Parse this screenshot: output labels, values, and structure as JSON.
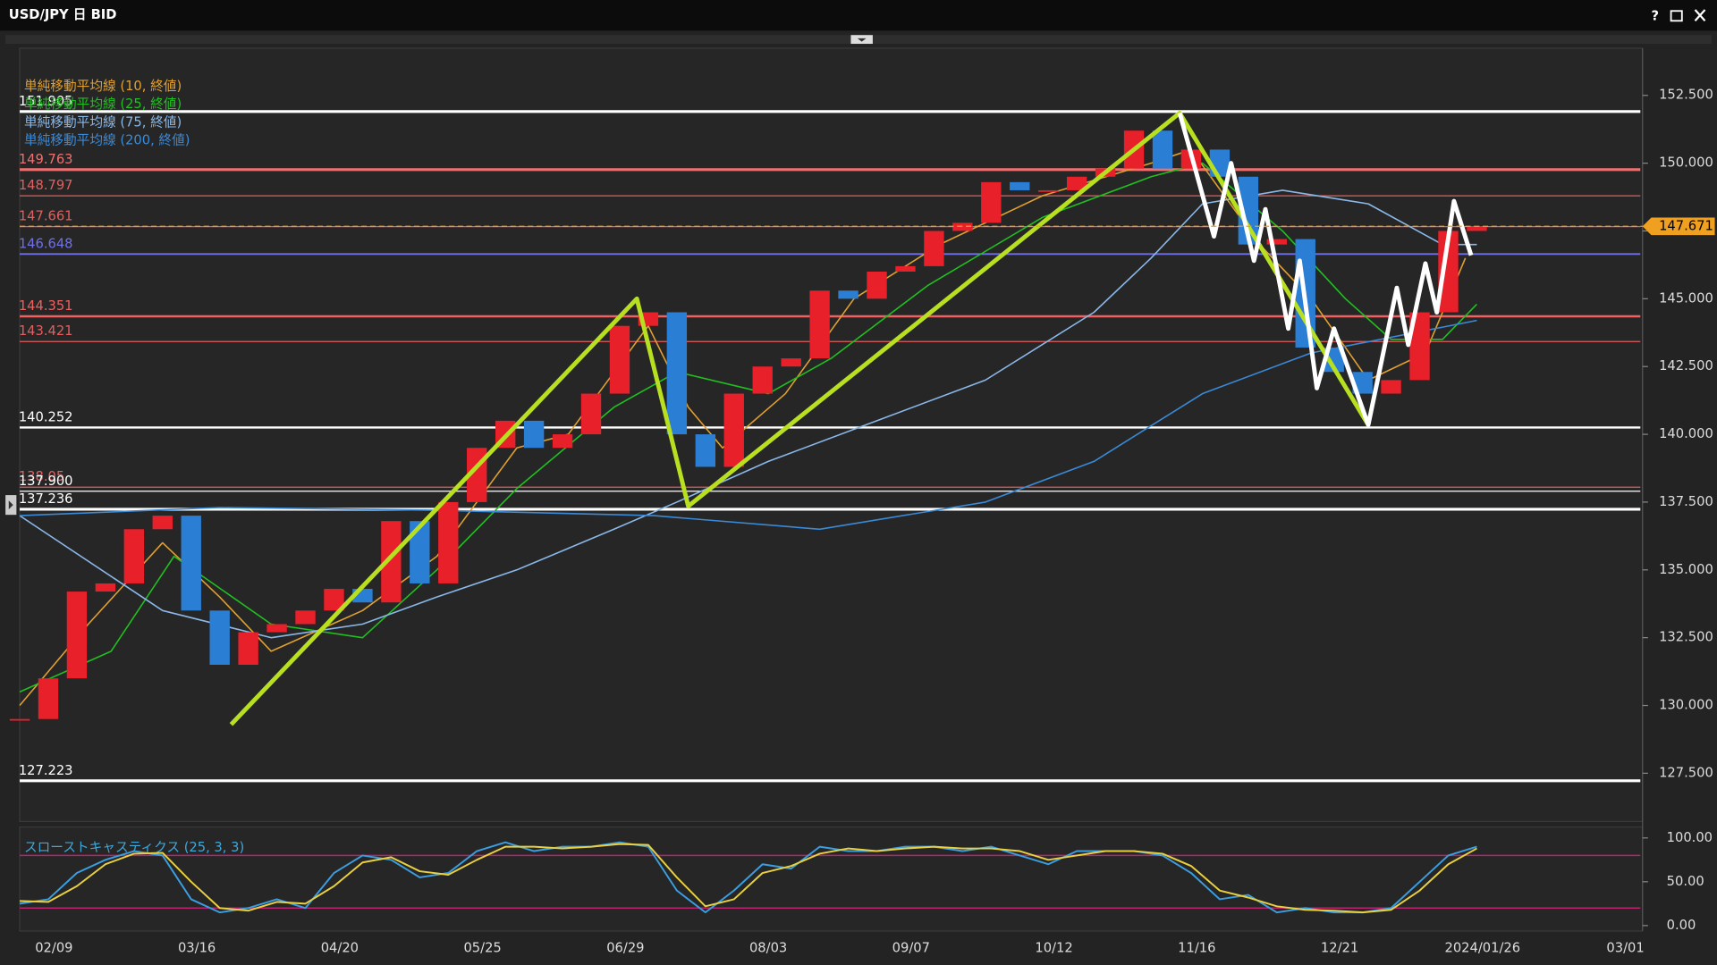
{
  "window": {
    "title": "USD/JPY 日 BID",
    "help_button": "?"
  },
  "chart_data": [
    {
      "type": "candlestick",
      "x": [
        0,
        5,
        10,
        15,
        20,
        25,
        30,
        35,
        40,
        45,
        50,
        55,
        60,
        65,
        70,
        75,
        80,
        85,
        90,
        95,
        100,
        105,
        110,
        115,
        120,
        125,
        130,
        135,
        140,
        145,
        150,
        155,
        160,
        165,
        170,
        175,
        180,
        185,
        190,
        195,
        200,
        205,
        210,
        215,
        220,
        225,
        230,
        235,
        240,
        245,
        250,
        255
      ],
      "closes": [
        129.5,
        131.0,
        134.2,
        134.5,
        136.5,
        137.0,
        133.5,
        131.5,
        132.7,
        133.0,
        133.5,
        134.3,
        133.8,
        136.8,
        134.5,
        137.5,
        139.5,
        140.5,
        139.5,
        140.0,
        141.5,
        144.0,
        144.5,
        140.0,
        138.8,
        141.5,
        142.5,
        142.8,
        145.3,
        145.0,
        146.0,
        146.2,
        147.5,
        147.8,
        149.3,
        149.0,
        149.0,
        149.5,
        149.8,
        151.2,
        149.8,
        150.5,
        149.5,
        147.0,
        147.2,
        143.2,
        142.3,
        141.5,
        142.0,
        144.5,
        147.5,
        147.671
      ],
      "up_color": "#e8202a",
      "down_color": "#2a7fd4",
      "xlim": [
        0,
        284
      ],
      "xticks": [
        {
          "value": 6,
          "label": "02/09"
        },
        {
          "value": 31,
          "label": "03/16"
        },
        {
          "value": 56,
          "label": "04/20"
        },
        {
          "value": 81,
          "label": "05/25"
        },
        {
          "value": 106,
          "label": "06/29"
        },
        {
          "value": 131,
          "label": "08/03"
        },
        {
          "value": 156,
          "label": "09/07"
        },
        {
          "value": 181,
          "label": "10/12"
        },
        {
          "value": 206,
          "label": "11/16"
        },
        {
          "value": 231,
          "label": "12/21"
        },
        {
          "value": 256,
          "label": "2024/01/26"
        },
        {
          "value": 281,
          "label": "03/01"
        }
      ],
      "ylim": [
        125.72,
        154.24
      ],
      "yticks": [
        {
          "value": 127.5,
          "label": "127.500"
        },
        {
          "value": 130,
          "label": "130.000"
        },
        {
          "value": 132.5,
          "label": "132.500"
        },
        {
          "value": 135,
          "label": "135.000"
        },
        {
          "value": 137.5,
          "label": "137.500"
        },
        {
          "value": 140,
          "label": "140.000"
        },
        {
          "value": 142.5,
          "label": "142.500"
        },
        {
          "value": 145,
          "label": "145.000"
        },
        {
          "value": 147.5,
          "label": "147.500"
        },
        {
          "value": 150,
          "label": "150.000"
        },
        {
          "value": 152.5,
          "label": "152.500"
        }
      ],
      "series": [
        {
          "name": "単純移動平均線 (10, 終値)",
          "color": "#e0a030",
          "x": [
            0,
            12,
            25,
            35,
            44,
            60,
            73,
            87,
            96,
            110,
            117,
            123,
            134,
            146,
            161,
            179,
            198,
            205,
            217,
            226,
            236,
            246,
            253
          ],
          "values": [
            130,
            133,
            136,
            134,
            132,
            133.5,
            135.5,
            139.5,
            140,
            144,
            141,
            139.5,
            141.5,
            145,
            147,
            148.8,
            150,
            150.5,
            147,
            145,
            142,
            143,
            146.5
          ]
        },
        {
          "name": "単純移動平均線 (25, 終値)",
          "color": "#20c020",
          "x": [
            0,
            16,
            27,
            44,
            60,
            73,
            87,
            104,
            115,
            131,
            142,
            159,
            179,
            198,
            207,
            221,
            232,
            240,
            249,
            255
          ],
          "values": [
            130.5,
            132,
            135.5,
            133,
            132.5,
            135,
            138,
            141,
            142.3,
            141.5,
            142.8,
            145.5,
            148,
            149.5,
            150,
            147.5,
            145,
            143.5,
            143.5,
            144.8
          ]
        },
        {
          "name": "単純移動平均線 (75, 終値)",
          "color": "#8ab8e8",
          "x": [
            0,
            25,
            44,
            60,
            73,
            87,
            104,
            115,
            131,
            150,
            169,
            188,
            198,
            207,
            221,
            236,
            249,
            255
          ],
          "values": [
            137,
            133.5,
            132.5,
            133,
            134,
            135,
            136.5,
            137.5,
            139,
            140.5,
            142,
            144.5,
            146.5,
            148.5,
            149,
            148.5,
            147,
            147
          ]
        },
        {
          "name": "単純移動平均線 (200, 終値)",
          "color": "#3a8ad8",
          "x": [
            0,
            35,
            73,
            111,
            140,
            169,
            188,
            207,
            226,
            255
          ],
          "values": [
            137,
            137.3,
            137.2,
            137,
            136.5,
            137.5,
            139,
            141.5,
            143,
            144.2
          ]
        }
      ],
      "levels": [
        {
          "value": 151.905,
          "color": "#ffffff",
          "width": 2.5
        },
        {
          "value": 149.763,
          "color": "#f07070",
          "width": 2.5
        },
        {
          "value": 148.797,
          "color": "#e06060",
          "width": 1
        },
        {
          "value": 147.661,
          "color": "#e06060",
          "width": 1
        },
        {
          "value": 146.648,
          "color": "#7070e8",
          "width": 1.5
        },
        {
          "value": 144.351,
          "color": "#f06060",
          "width": 2
        },
        {
          "value": 143.421,
          "color": "#e06060",
          "width": 1
        },
        {
          "value": 140.252,
          "color": "#ffffff",
          "width": 2
        },
        {
          "value": 138.05,
          "color": "#e06060",
          "width": 1
        },
        {
          "value": 137.9,
          "label": "137.900",
          "color": "#ffffff",
          "width": 1
        },
        {
          "value": 137.236,
          "color": "#ffffff",
          "width": 2.5
        },
        {
          "value": 127.223,
          "color": "#ffffff",
          "width": 2.5
        }
      ],
      "trendlines": [
        {
          "color": "#b8e020",
          "x": [
            37,
            108,
            117,
            203,
            236
          ],
          "values": [
            129.3,
            145.0,
            137.35,
            151.85,
            140.35
          ]
        },
        {
          "color": "#ffffff",
          "x": [
            203,
            209,
            212,
            216,
            218,
            222,
            224,
            227,
            230,
            236,
            241,
            243,
            246,
            248,
            251,
            254
          ],
          "values": [
            151.85,
            147.3,
            150.0,
            146.4,
            148.3,
            143.9,
            146.4,
            141.7,
            143.9,
            140.35,
            145.4,
            143.3,
            146.3,
            144.5,
            148.6,
            146.6
          ]
        }
      ],
      "current_price": 147.671,
      "current_color": "#f0a020"
    },
    {
      "type": "line",
      "title": "スローストキャスティクス (25, 3, 3)",
      "x": [
        0,
        5,
        10,
        15,
        20,
        25,
        30,
        35,
        40,
        45,
        50,
        55,
        60,
        65,
        70,
        75,
        80,
        85,
        90,
        95,
        100,
        105,
        110,
        115,
        120,
        125,
        130,
        135,
        140,
        145,
        150,
        155,
        160,
        165,
        170,
        175,
        180,
        185,
        190,
        195,
        200,
        205,
        210,
        215,
        220,
        225,
        230,
        235,
        240,
        245,
        250,
        255
      ],
      "series": [
        {
          "color": "#3a9ee0",
          "values": [
            25,
            30,
            60,
            75,
            85,
            80,
            30,
            15,
            20,
            30,
            20,
            60,
            80,
            75,
            55,
            60,
            85,
            95,
            85,
            90,
            90,
            95,
            90,
            40,
            15,
            40,
            70,
            65,
            90,
            85,
            85,
            90,
            90,
            85,
            90,
            80,
            70,
            85,
            85,
            85,
            80,
            60,
            30,
            35,
            15,
            20,
            15,
            15,
            20,
            50,
            80,
            90
          ]
        },
        {
          "color": "#e8d040",
          "values": [
            28,
            27,
            45,
            70,
            82,
            83,
            50,
            20,
            17,
            27,
            25,
            45,
            72,
            78,
            62,
            58,
            75,
            90,
            90,
            88,
            90,
            93,
            92,
            55,
            22,
            30,
            60,
            68,
            82,
            88,
            85,
            88,
            90,
            88,
            88,
            85,
            75,
            80,
            85,
            85,
            82,
            68,
            40,
            32,
            22,
            18,
            17,
            15,
            18,
            40,
            70,
            88
          ]
        }
      ],
      "ylim": [
        -6.25,
        112.5
      ],
      "yticks": [
        {
          "value": 0,
          "label": "0.00"
        },
        {
          "value": 50,
          "label": "50.00"
        },
        {
          "value": 100,
          "label": "100.00"
        }
      ],
      "levels": [
        80,
        20
      ],
      "level_color": "#c02070"
    }
  ]
}
